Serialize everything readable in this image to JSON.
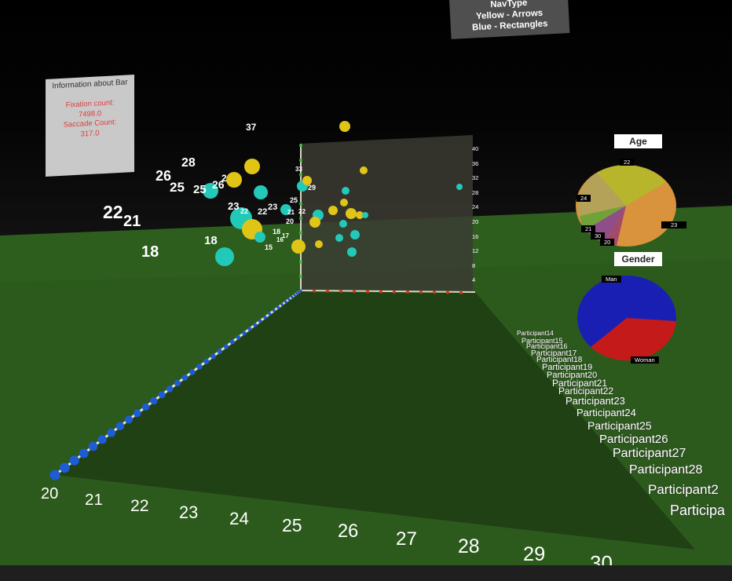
{
  "nav_panel": {
    "lines": [
      "NavType",
      "Yellow - Arrows",
      "Blue - Rectangles"
    ]
  },
  "info_panel": {
    "title": "Information about Bar",
    "fixation_label": "Fixation count:",
    "fixation_value": "7498.0",
    "saccade_label": "Saccade Count:",
    "saccade_value": "317.0"
  },
  "x_axis_labels": [
    "20",
    "21",
    "22",
    "23",
    "24",
    "25",
    "26",
    "27",
    "28",
    "29",
    "30"
  ],
  "y_axis_labels": [
    "40",
    "36",
    "32",
    "28",
    "24",
    "20",
    "16",
    "12",
    "8",
    "4"
  ],
  "participants": [
    "Participant14",
    "Participant15",
    "Participant16",
    "Participant17",
    "Participant18",
    "Participant19",
    "Participant20",
    "Participant21",
    "Participant22",
    "Participant23",
    "Participant24",
    "Participant25",
    "Participant26",
    "Participant27",
    "Participant28",
    "Participant2",
    "Participa"
  ],
  "floating_labels": [
    "37",
    "28",
    "26",
    "25",
    "25",
    "26",
    "2",
    "33",
    "23",
    "22",
    "22",
    "23",
    "21",
    "18",
    "18",
    "17",
    "16",
    "15",
    "20",
    "25",
    "29",
    "22",
    "21",
    "22",
    "18"
  ],
  "colors": {
    "yellow": "#e0c516",
    "cyan": "#22c9b8",
    "floor": "#2c5c1c",
    "blue": "#1e5bd6"
  },
  "age_chart": {
    "title": "Age",
    "labels": [
      "22",
      "24",
      "21",
      "30",
      "20",
      "23"
    ]
  },
  "gender_chart": {
    "title": "Gender",
    "labels": [
      "Man",
      "Woman"
    ]
  }
}
